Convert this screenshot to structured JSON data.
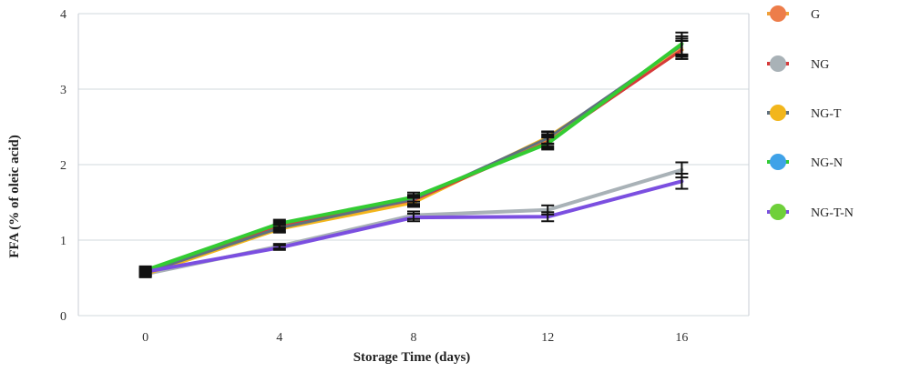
{
  "chart_data": {
    "type": "line",
    "title": "",
    "xlabel": "Storage Time (days)",
    "ylabel": "FFA (% of oleic acid)",
    "x": [
      0,
      4,
      8,
      12,
      16
    ],
    "xticks": [
      "0",
      "4",
      "8",
      "12",
      "16"
    ],
    "yticks": [
      "0",
      "1",
      "2",
      "3",
      "4"
    ],
    "xlim": [
      -2,
      18
    ],
    "ylim": [
      0,
      4
    ],
    "grid": "horizontal",
    "legend_position": "right",
    "series": [
      {
        "name": "G",
        "marker_color": "#ED7D4A",
        "line_color": "#F0A23A",
        "values": [
          0.58,
          1.18,
          1.52,
          2.32,
          3.55
        ],
        "errors": [
          0.03,
          0.05,
          0.06,
          0.08,
          0.12
        ]
      },
      {
        "name": "NG",
        "marker_color": "#A9B2B7",
        "line_color": "#D63A3A",
        "values": [
          0.56,
          1.2,
          1.53,
          2.3,
          3.52
        ],
        "errors": [
          0.03,
          0.05,
          0.06,
          0.08,
          0.12
        ]
      },
      {
        "name": "NG-T",
        "marker_color": "#F2B61C",
        "line_color": "#607080",
        "values": [
          0.57,
          1.16,
          1.54,
          2.35,
          3.58
        ],
        "errors": [
          0.03,
          0.05,
          0.06,
          0.08,
          0.12
        ]
      },
      {
        "name": "NG-N",
        "marker_color": "#3FA2E8",
        "line_color": "#33CC33",
        "values": [
          0.6,
          1.22,
          1.57,
          2.28,
          3.6
        ],
        "errors": [
          0.03,
          0.05,
          0.06,
          0.08,
          0.15
        ]
      },
      {
        "name": "NG-T-N",
        "marker_color": "#6FD03A",
        "line_color": "#7B4FE0",
        "values": [
          0.58,
          0.9,
          1.3,
          1.31,
          1.78
        ],
        "errors": [
          0.03,
          0.03,
          0.05,
          0.06,
          0.1
        ]
      }
    ],
    "extra_lines": [
      {
        "color": "#A9B2B7",
        "values": [
          0.55,
          0.92,
          1.33,
          1.4,
          1.93
        ],
        "errors": [
          0.03,
          0.03,
          0.05,
          0.06,
          0.1
        ]
      },
      {
        "color": "#F2B61C",
        "values": [
          0.55,
          1.15,
          1.5,
          2.36,
          3.52
        ],
        "errors": [
          0.03,
          0.05,
          0.06,
          0.08,
          0.12
        ]
      }
    ]
  }
}
